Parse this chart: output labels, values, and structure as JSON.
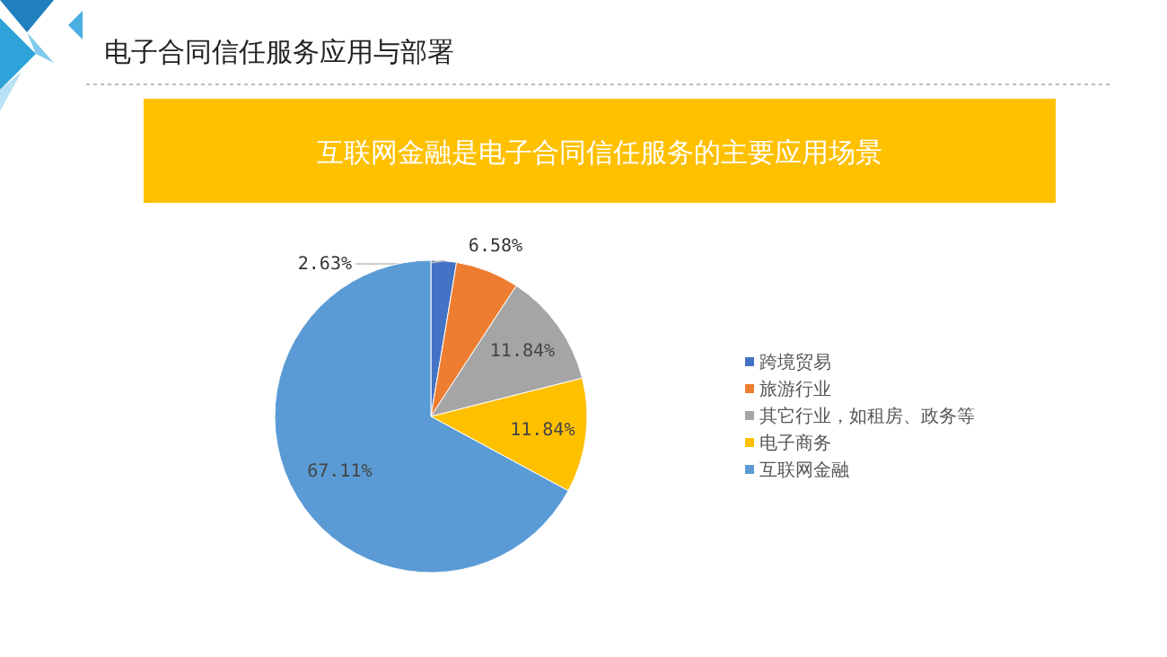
{
  "chart_data": {
    "type": "pie",
    "title": "电子合同信任服务应用与部署",
    "subtitle": "互联网金融是电子合同信任服务的主要应用场景",
    "categories": [
      "跨境贸易",
      "旅游行业",
      "其它行业，如租房、政务等",
      "电子商务",
      "互联网金融"
    ],
    "values": [
      2.63,
      6.58,
      11.84,
      11.84,
      67.11
    ],
    "colors": [
      "#4472c4",
      "#ed7d31",
      "#a5a5a5",
      "#ffc000",
      "#5b9bd5"
    ],
    "value_labels": [
      "2.63%",
      "6.58%",
      "11.84%",
      "11.84%",
      "67.11%"
    ],
    "legend": "right"
  }
}
